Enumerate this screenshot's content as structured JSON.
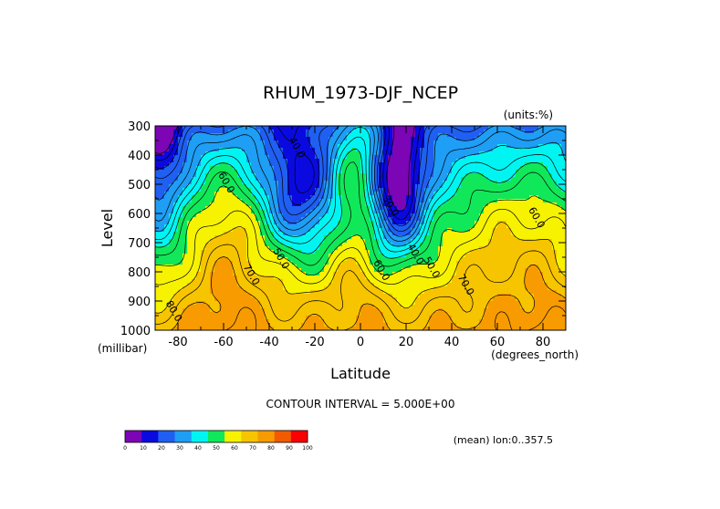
{
  "chart_data": {
    "type": "heatmap",
    "title": "RHUM_1973-DJF_NCEP",
    "units_label": "(units:%)",
    "xlabel": "Latitude",
    "ylabel": "Level",
    "x_unit_label": "(degrees_north)",
    "y_unit_label": "(millibar)",
    "x_ticks": [
      "-80",
      "-60",
      "-40",
      "-20",
      "0",
      "20",
      "40",
      "60",
      "80"
    ],
    "y_ticks": [
      "300",
      "400",
      "500",
      "600",
      "700",
      "800",
      "900",
      "1000"
    ],
    "xlim": [
      -90,
      90
    ],
    "ylim": [
      1000,
      300
    ],
    "y_inverted": true,
    "contour_interval_text": "CONTOUR INTERVAL = 5.000E+00",
    "footer_text": "(mean) lon:0..357.5",
    "contour_labels": [
      {
        "text": "40.0",
        "lat": -29,
        "lev": 380
      },
      {
        "text": "60.0",
        "lat": -60,
        "lev": 500
      },
      {
        "text": "30.0",
        "lat": 12,
        "lev": 580
      },
      {
        "text": "60.0",
        "lat": 76,
        "lev": 620
      },
      {
        "text": "50.0",
        "lat": -36,
        "lev": 760
      },
      {
        "text": "40.0",
        "lat": 23,
        "lev": 745
      },
      {
        "text": "60.0",
        "lat": 8,
        "lev": 800
      },
      {
        "text": "50.0",
        "lat": 30,
        "lev": 790
      },
      {
        "text": "70.0",
        "lat": -49,
        "lev": 815
      },
      {
        "text": "70.0",
        "lat": 45,
        "lev": 850
      },
      {
        "text": "80.0",
        "lat": -83,
        "lev": 940
      }
    ],
    "colorbar": {
      "labels": [
        "0",
        "10",
        "20",
        "30",
        "40",
        "50",
        "60",
        "70",
        "80",
        "90",
        "100"
      ],
      "colors": [
        "#7c05b6",
        "#0a0ae0",
        "#1f5ff2",
        "#1e9ef5",
        "#00f5f2",
        "#10e85a",
        "#f7f200",
        "#f7c400",
        "#f79b00",
        "#f25a00",
        "#fa0000"
      ]
    },
    "color_bands": [
      {
        "min": 0,
        "max": 10,
        "color": "#7c05b6"
      },
      {
        "min": 10,
        "max": 20,
        "color": "#0a0ae0"
      },
      {
        "min": 20,
        "max": 30,
        "color": "#1f5ff2"
      },
      {
        "min": 30,
        "max": 40,
        "color": "#1e9ef5"
      },
      {
        "min": 40,
        "max": 50,
        "color": "#00f5f2"
      },
      {
        "min": 50,
        "max": 60,
        "color": "#10e85a"
      },
      {
        "min": 60,
        "max": 70,
        "color": "#f7f200"
      },
      {
        "min": 70,
        "max": 80,
        "color": "#f7c400"
      },
      {
        "min": 80,
        "max": 90,
        "color": "#f79b00"
      },
      {
        "min": 90,
        "max": 95,
        "color": "#f25a00"
      },
      {
        "min": 95,
        "max": 100,
        "color": "#fa0000"
      }
    ]
  }
}
